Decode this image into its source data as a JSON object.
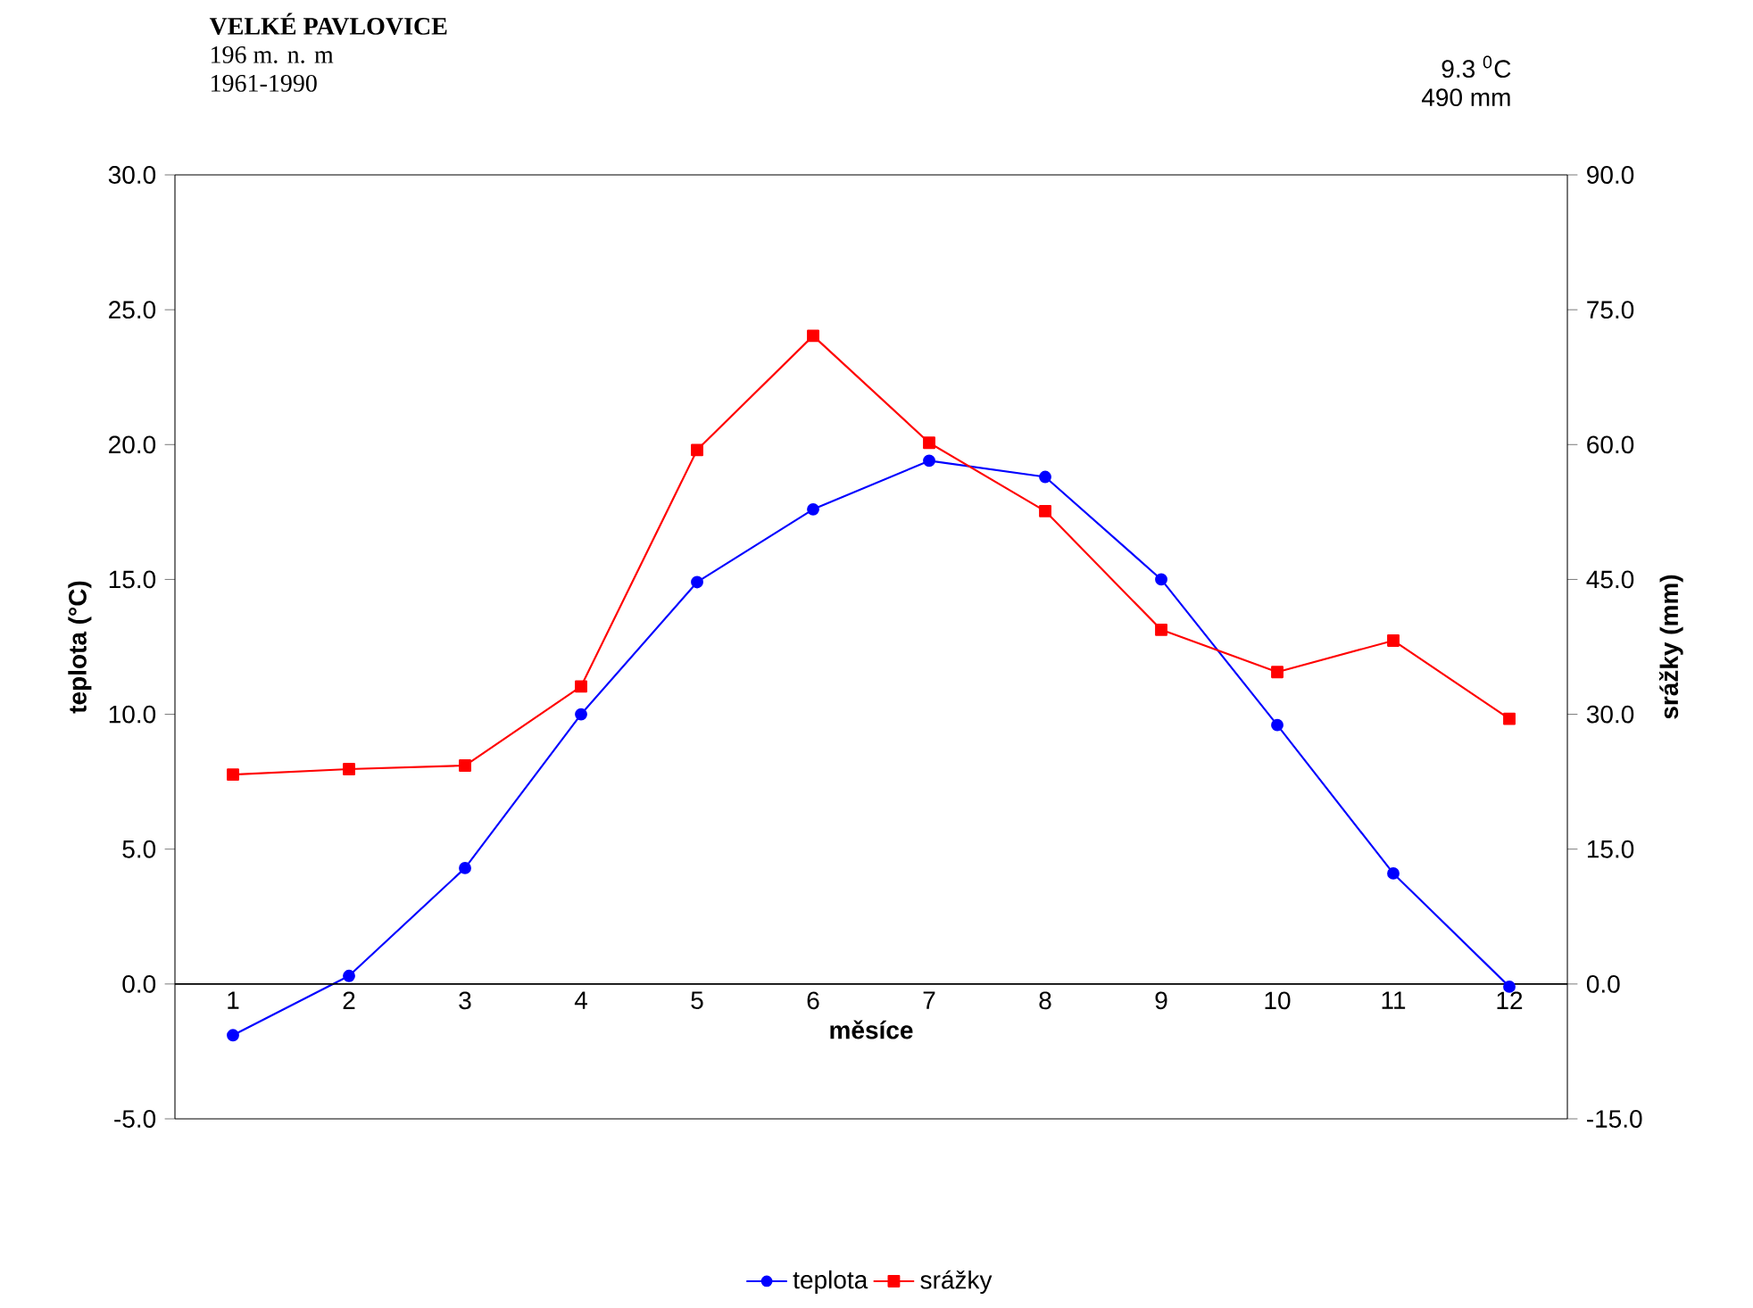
{
  "chart_data": {
    "type": "line",
    "title": "VELKÉ PAVLOVICE",
    "subtitle": "196 m. n. m",
    "annotations": [
      "1961-1990",
      "9.3 $^{0}$C",
      "490 mm"
    ],
    "xlabel": "měsíce",
    "ylabel": "teplota (°C)",
    "y2label": "srážky (mm)",
    "categories": [
      "1",
      "2",
      "3",
      "4",
      "5",
      "6",
      "7",
      "8",
      "9",
      "10",
      "11",
      "12"
    ],
    "series": [
      {
        "name": "teplota",
        "color": "#0000ff",
        "marker": "circle",
        "values": [
          -1.9,
          0.3,
          4.3,
          10.0,
          14.9,
          17.6,
          19.4,
          18.8,
          15.0,
          9.6,
          4.1,
          -0.1
        ]
      },
      {
        "name": "srážky",
        "color": "#ff0000",
        "marker": "square",
        "axis": "y2",
        "values": [
          23.3,
          23.9,
          24.3,
          33.1,
          59.4,
          72.1,
          60.2,
          52.6,
          39.4,
          34.7,
          38.2,
          29.5
        ]
      }
    ],
    "ylim": [
      -5,
      30
    ],
    "yticks": [
      {
        "value": -5,
        "label": "-5.0"
      },
      {
        "value": 0,
        "label": "0.0"
      },
      {
        "value": 5,
        "label": "5.0"
      },
      {
        "value": 10,
        "label": "10.0"
      },
      {
        "value": 15,
        "label": "15.0"
      },
      {
        "value": 20,
        "label": "20.0"
      },
      {
        "value": 25,
        "label": "25.0"
      },
      {
        "value": 30,
        "label": "30.0"
      }
    ],
    "y2lim": [
      -15,
      90
    ],
    "y2ticks": [
      {
        "value": -15,
        "label": "-15.0"
      },
      {
        "value": 0,
        "label": "0.0"
      },
      {
        "value": 15,
        "label": "15.0"
      },
      {
        "value": 30,
        "label": "30.0"
      },
      {
        "value": 45,
        "label": "45.0"
      },
      {
        "value": 60,
        "label": "60.0"
      },
      {
        "value": 75,
        "label": "75.0"
      },
      {
        "value": 90,
        "label": "90.0"
      }
    ],
    "legend": "bottom"
  }
}
